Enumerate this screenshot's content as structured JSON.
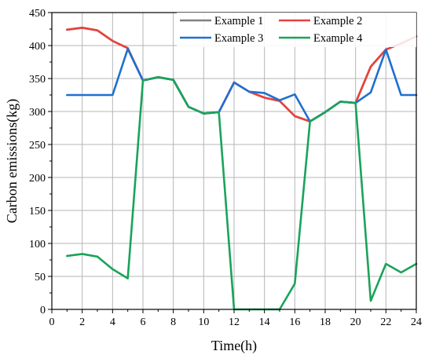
{
  "chart_data": {
    "type": "line",
    "xlabel": "Time(h)",
    "ylabel": "Carbon emissions(kg)",
    "xlim": [
      0,
      24
    ],
    "ylim": [
      0,
      450
    ],
    "xticks": [
      0,
      2,
      4,
      6,
      8,
      10,
      12,
      14,
      16,
      18,
      20,
      22,
      24
    ],
    "yticks": [
      0,
      50,
      100,
      150,
      200,
      250,
      300,
      350,
      400,
      450
    ],
    "grid": true,
    "legend_position": "top-right",
    "x": [
      1,
      2,
      3,
      4,
      5,
      6,
      7,
      8,
      9,
      10,
      11,
      12,
      13,
      14,
      15,
      16,
      17,
      18,
      19,
      20,
      21,
      22,
      23,
      24
    ],
    "series": [
      {
        "name": "Example 1",
        "color": "#808080",
        "values": [
          424,
          427,
          423,
          407,
          396,
          347,
          352,
          348,
          307,
          297,
          299,
          344,
          330,
          321,
          316,
          293,
          285,
          299,
          315,
          313,
          368,
          394,
          403,
          414
        ]
      },
      {
        "name": "Example 2",
        "color": "#e8403c",
        "values": [
          424,
          427,
          423,
          407,
          396,
          347,
          352,
          348,
          307,
          297,
          299,
          344,
          330,
          321,
          316,
          293,
          285,
          299,
          315,
          313,
          368,
          394,
          403,
          414
        ]
      },
      {
        "name": "Example 3",
        "color": "#1f6fd1",
        "values": [
          325,
          325,
          325,
          325,
          395,
          347,
          352,
          348,
          307,
          297,
          299,
          344,
          330,
          328,
          317,
          326,
          285,
          299,
          315,
          313,
          329,
          394,
          325,
          325
        ]
      },
      {
        "name": "Example 4",
        "color": "#1aa35a",
        "values": [
          81,
          84,
          80,
          61,
          47,
          347,
          352,
          348,
          307,
          297,
          299,
          0,
          0,
          0,
          0,
          39,
          285,
          299,
          315,
          313,
          13,
          69,
          56,
          69
        ]
      }
    ]
  }
}
